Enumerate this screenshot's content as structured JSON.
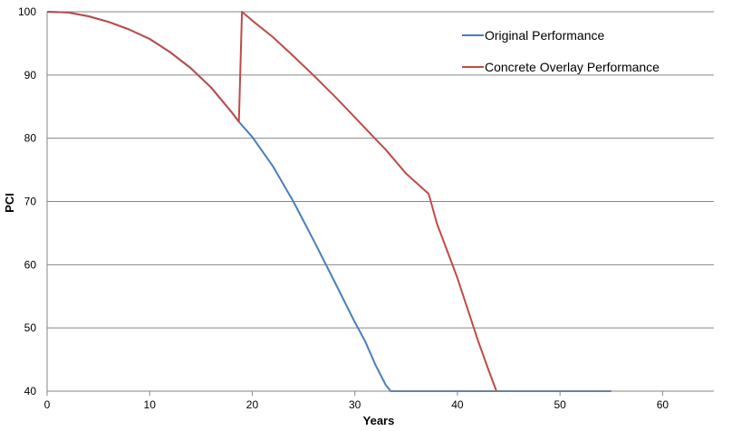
{
  "chart_data": {
    "type": "line",
    "title": "",
    "xlabel": "Years",
    "ylabel": "PCI",
    "xlim": [
      0,
      65
    ],
    "ylim": [
      40,
      100
    ],
    "x_ticks": [
      0,
      10,
      20,
      30,
      40,
      50,
      60
    ],
    "y_ticks": [
      40,
      50,
      60,
      70,
      80,
      90,
      100
    ],
    "grid": "horizontal",
    "legend_position": "top-right",
    "series": [
      {
        "name": "Original Performance",
        "color": "#4a7ebb",
        "x": [
          0,
          2,
          4,
          6,
          8,
          10,
          12,
          14,
          16,
          18,
          18.7,
          20,
          22,
          24,
          26,
          28,
          30,
          31,
          32,
          33,
          33.5,
          35,
          40,
          45,
          50,
          55
        ],
        "y": [
          100,
          99.9,
          99.3,
          98.4,
          97.2,
          95.7,
          93.6,
          91.1,
          88.0,
          84.1,
          82.6,
          80.2,
          75.6,
          70.0,
          63.8,
          57.4,
          50.9,
          47.9,
          44.2,
          41.0,
          40.0,
          40.0,
          40.0,
          40.0,
          40.0,
          40.0
        ]
      },
      {
        "name": "Concrete Overlay Performance",
        "color": "#be4b48",
        "x": [
          0,
          2,
          4,
          6,
          8,
          10,
          12,
          14,
          16,
          18,
          18.7,
          19,
          20,
          22,
          24,
          26,
          28,
          30,
          32,
          33,
          35,
          37.2,
          38,
          40,
          42,
          43,
          43.8
        ],
        "y": [
          100,
          99.9,
          99.3,
          98.4,
          97.2,
          95.7,
          93.6,
          91.1,
          88.0,
          84.1,
          82.6,
          100.0,
          98.6,
          96.0,
          93.0,
          89.9,
          86.7,
          83.3,
          79.9,
          78.2,
          74.4,
          71.2,
          66.5,
          57.9,
          48.0,
          43.5,
          40.0
        ]
      }
    ]
  }
}
